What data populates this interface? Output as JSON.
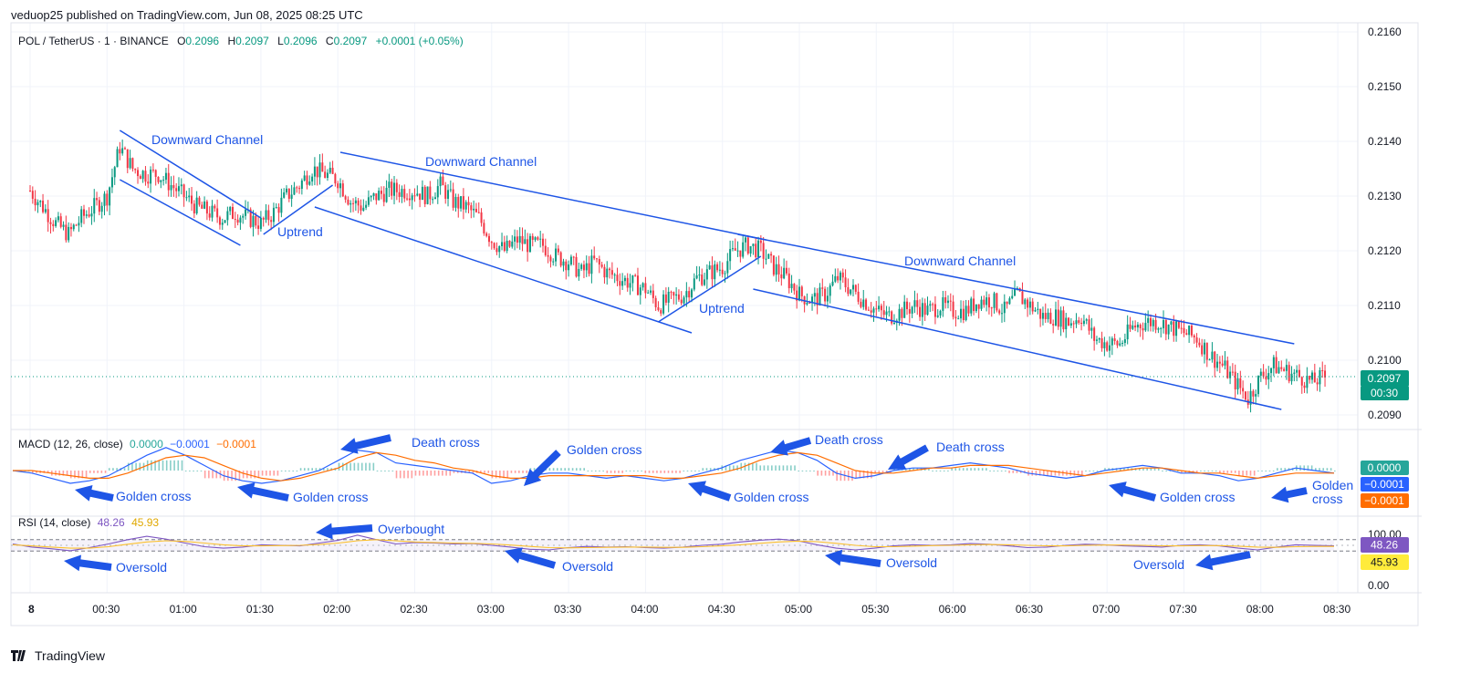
{
  "header": {
    "published": "veduop25 published on TradingView.com, Jun 08, 2025 08:25 UTC"
  },
  "legend": {
    "symbol": "POL / TetherUS · 1 · BINANCE",
    "o_label": "O",
    "o": "0.2096",
    "h_label": "H",
    "h": "0.2097",
    "l_label": "L",
    "l": "0.2096",
    "c_label": "C",
    "c": "0.2097",
    "change": "+0.0001 (+0.05%)"
  },
  "macd_legend": {
    "name": "MACD (12, 26, close)",
    "v1": "0.0000",
    "v2": "−0.0001",
    "v3": "−0.0001"
  },
  "rsi_legend": {
    "name": "RSI (14, close)",
    "v1": "48.26",
    "v2": "45.93"
  },
  "footer": {
    "brand": "TradingView"
  },
  "colors": {
    "up": "#089981",
    "down": "#f23645",
    "annotation": "#1e55e6",
    "macd": "#2962ff",
    "signal": "#ff6d00",
    "rsi": "#7e57c2",
    "rsi_ma": "#fbc02d"
  },
  "chart_data": [
    {
      "type": "candlestick",
      "title": "POL / TetherUS · 1 · BINANCE",
      "x_ticks": [
        "8",
        "00:30",
        "01:00",
        "01:30",
        "02:00",
        "02:30",
        "03:00",
        "03:30",
        "04:00",
        "04:30",
        "05:00",
        "05:30",
        "06:00",
        "06:30",
        "07:00",
        "07:30",
        "08:00",
        "08:30"
      ],
      "y_ticks": [
        "0.2160",
        "0.2150",
        "0.2140",
        "0.2130",
        "0.2120",
        "0.2110",
        "0.2100",
        "0.2090"
      ],
      "ylim": [
        0.2089,
        0.2161
      ],
      "last_price": "0.2097",
      "countdown": "00:30",
      "close_path": [
        {
          "x": "00:00",
          "y": 0.2131
        },
        {
          "x": "00:05",
          "y": 0.2128
        },
        {
          "x": "00:10",
          "y": 0.2125
        },
        {
          "x": "00:15",
          "y": 0.2123
        },
        {
          "x": "00:20",
          "y": 0.2126
        },
        {
          "x": "00:25",
          "y": 0.2128
        },
        {
          "x": "00:30",
          "y": 0.213
        },
        {
          "x": "00:35",
          "y": 0.2139
        },
        {
          "x": "00:40",
          "y": 0.2135
        },
        {
          "x": "00:45",
          "y": 0.2134
        },
        {
          "x": "00:50",
          "y": 0.2134
        },
        {
          "x": "00:55",
          "y": 0.2132
        },
        {
          "x": "01:00",
          "y": 0.213
        },
        {
          "x": "01:05",
          "y": 0.2128
        },
        {
          "x": "01:10",
          "y": 0.2127
        },
        {
          "x": "01:15",
          "y": 0.2126
        },
        {
          "x": "01:20",
          "y": 0.2127
        },
        {
          "x": "01:25",
          "y": 0.2126
        },
        {
          "x": "01:30",
          "y": 0.2125
        },
        {
          "x": "01:35",
          "y": 0.2127
        },
        {
          "x": "01:40",
          "y": 0.213
        },
        {
          "x": "01:45",
          "y": 0.2132
        },
        {
          "x": "01:50",
          "y": 0.2135
        },
        {
          "x": "01:55",
          "y": 0.2134
        },
        {
          "x": "02:00",
          "y": 0.2133
        },
        {
          "x": "02:05",
          "y": 0.2129
        },
        {
          "x": "02:10",
          "y": 0.2128
        },
        {
          "x": "02:15",
          "y": 0.213
        },
        {
          "x": "02:20",
          "y": 0.2131
        },
        {
          "x": "02:25",
          "y": 0.2131
        },
        {
          "x": "02:30",
          "y": 0.2131
        },
        {
          "x": "02:35",
          "y": 0.213
        },
        {
          "x": "02:40",
          "y": 0.2132
        },
        {
          "x": "02:45",
          "y": 0.2129
        },
        {
          "x": "02:50",
          "y": 0.2128
        },
        {
          "x": "02:55",
          "y": 0.2126
        },
        {
          "x": "03:00",
          "y": 0.2122
        },
        {
          "x": "03:05",
          "y": 0.212
        },
        {
          "x": "03:10",
          "y": 0.2122
        },
        {
          "x": "03:15",
          "y": 0.2121
        },
        {
          "x": "03:20",
          "y": 0.2121
        },
        {
          "x": "03:25",
          "y": 0.2119
        },
        {
          "x": "03:30",
          "y": 0.2118
        },
        {
          "x": "03:35",
          "y": 0.2116
        },
        {
          "x": "03:40",
          "y": 0.2118
        },
        {
          "x": "03:45",
          "y": 0.2116
        },
        {
          "x": "03:50",
          "y": 0.2115
        },
        {
          "x": "03:55",
          "y": 0.2114
        },
        {
          "x": "04:00",
          "y": 0.2113
        },
        {
          "x": "04:05",
          "y": 0.211
        },
        {
          "x": "04:10",
          "y": 0.2111
        },
        {
          "x": "04:15",
          "y": 0.2112
        },
        {
          "x": "04:20",
          "y": 0.2115
        },
        {
          "x": "04:25",
          "y": 0.2116
        },
        {
          "x": "04:30",
          "y": 0.2117
        },
        {
          "x": "04:35",
          "y": 0.212
        },
        {
          "x": "04:40",
          "y": 0.2121
        },
        {
          "x": "04:45",
          "y": 0.212
        },
        {
          "x": "04:50",
          "y": 0.2117
        },
        {
          "x": "04:55",
          "y": 0.2115
        },
        {
          "x": "05:00",
          "y": 0.2112
        },
        {
          "x": "05:05",
          "y": 0.2111
        },
        {
          "x": "05:10",
          "y": 0.2112
        },
        {
          "x": "05:15",
          "y": 0.2115
        },
        {
          "x": "05:20",
          "y": 0.2113
        },
        {
          "x": "05:25",
          "y": 0.2111
        },
        {
          "x": "05:30",
          "y": 0.2109
        },
        {
          "x": "05:35",
          "y": 0.2108
        },
        {
          "x": "05:40",
          "y": 0.2109
        },
        {
          "x": "05:45",
          "y": 0.211
        },
        {
          "x": "05:50",
          "y": 0.2109
        },
        {
          "x": "05:55",
          "y": 0.211
        },
        {
          "x": "06:00",
          "y": 0.2109
        },
        {
          "x": "06:05",
          "y": 0.2109
        },
        {
          "x": "06:10",
          "y": 0.2111
        },
        {
          "x": "06:15",
          "y": 0.2111
        },
        {
          "x": "06:20",
          "y": 0.2109
        },
        {
          "x": "06:25",
          "y": 0.2112
        },
        {
          "x": "06:30",
          "y": 0.211
        },
        {
          "x": "06:35",
          "y": 0.2108
        },
        {
          "x": "06:40",
          "y": 0.2108
        },
        {
          "x": "06:45",
          "y": 0.2107
        },
        {
          "x": "06:50",
          "y": 0.2108
        },
        {
          "x": "06:55",
          "y": 0.2104
        },
        {
          "x": "07:00",
          "y": 0.2103
        },
        {
          "x": "07:05",
          "y": 0.2103
        },
        {
          "x": "07:10",
          "y": 0.2106
        },
        {
          "x": "07:15",
          "y": 0.2107
        },
        {
          "x": "07:20",
          "y": 0.2107
        },
        {
          "x": "07:25",
          "y": 0.2106
        },
        {
          "x": "07:30",
          "y": 0.2105
        },
        {
          "x": "07:35",
          "y": 0.2104
        },
        {
          "x": "07:40",
          "y": 0.2101
        },
        {
          "x": "07:45",
          "y": 0.2099
        },
        {
          "x": "07:50",
          "y": 0.2096
        },
        {
          "x": "07:55",
          "y": 0.2093
        },
        {
          "x": "08:00",
          "y": 0.2097
        },
        {
          "x": "08:05",
          "y": 0.2099
        },
        {
          "x": "08:10",
          "y": 0.2098
        },
        {
          "x": "08:15",
          "y": 0.2097
        },
        {
          "x": "08:20",
          "y": 0.2096
        },
        {
          "x": "08:25",
          "y": 0.2097
        }
      ],
      "channel_lines": [
        {
          "label": "Downward Channel",
          "from": {
            "x": "00:35",
            "y": 0.2142
          },
          "to": {
            "x": "01:30",
            "y": 0.2126
          }
        },
        {
          "label": "",
          "from": {
            "x": "00:35",
            "y": 0.2133
          },
          "to": {
            "x": "01:22",
            "y": 0.2121
          }
        },
        {
          "label": "Uptrend",
          "from": {
            "x": "01:31",
            "y": 0.2123
          },
          "to": {
            "x": "01:58",
            "y": 0.2132
          }
        },
        {
          "label": "Downward Channel",
          "from": {
            "x": "02:01",
            "y": 0.2138
          },
          "to": {
            "x": "04:47",
            "y": 0.2122
          }
        },
        {
          "label": "",
          "from": {
            "x": "01:51",
            "y": 0.2128
          },
          "to": {
            "x": "04:18",
            "y": 0.2105
          }
        },
        {
          "label": "Uptrend",
          "from": {
            "x": "04:05",
            "y": 0.2107
          },
          "to": {
            "x": "04:45",
            "y": 0.2119
          }
        },
        {
          "label": "Downward Channel",
          "from": {
            "x": "04:36",
            "y": 0.2123
          },
          "to": {
            "x": "08:13",
            "y": 0.2103
          }
        },
        {
          "label": "",
          "from": {
            "x": "04:42",
            "y": 0.2113
          },
          "to": {
            "x": "08:08",
            "y": 0.2091
          }
        }
      ],
      "annotations": [
        "Downward Channel",
        "Uptrend",
        "Downward Channel",
        "Uptrend",
        "Downward Channel"
      ]
    },
    {
      "type": "line",
      "title": "MACD (12, 26, close)",
      "series": [
        {
          "name": "MACD",
          "color": "#2962ff",
          "values": [
            0.0,
            -0.0001,
            -0.0003,
            -0.0005,
            -0.0004,
            -0.0002,
            0.0002,
            0.0006,
            0.0009,
            0.0006,
            0.0002,
            -0.0002,
            -0.0004,
            -0.0005,
            -0.0004,
            -0.0002,
            0.0,
            0.0004,
            0.0008,
            0.0007,
            0.0003,
            0.0002,
            0.0001,
            0.0,
            -0.0001,
            -0.0005,
            -0.0004,
            -0.0002,
            -0.0001,
            -0.0001,
            -0.0002,
            -0.0003,
            -0.0002,
            -0.0003,
            -0.0004,
            -0.0003,
            -0.0001,
            0.0001,
            0.0004,
            0.0006,
            0.0008,
            0.0007,
            0.0004,
            -0.0001,
            -0.0003,
            -0.0002,
            0.0,
            0.0001,
            0.0001,
            0.0002,
            0.0003,
            0.0002,
            0.0001,
            -0.0001,
            -0.0002,
            -0.0003,
            -0.0002,
            0.0,
            0.0001,
            0.0002,
            0.0001,
            -0.0001,
            -0.0001,
            -0.0002,
            -0.0004,
            -0.0003,
            -0.0001,
            0.0001,
            0.0,
            -0.0001
          ]
        },
        {
          "name": "Signal",
          "color": "#ff6d00",
          "values": [
            0.0,
            0.0,
            -0.0001,
            -0.0002,
            -0.0003,
            -0.0003,
            -0.0001,
            0.0002,
            0.0005,
            0.0006,
            0.0005,
            0.0002,
            -0.0001,
            -0.0003,
            -0.0004,
            -0.0003,
            -0.0001,
            0.0001,
            0.0005,
            0.0007,
            0.0006,
            0.0004,
            0.0003,
            0.0001,
            0.0,
            -0.0002,
            -0.0003,
            -0.0003,
            -0.0002,
            -0.0002,
            -0.0002,
            -0.0002,
            -0.0002,
            -0.0002,
            -0.0003,
            -0.0003,
            -0.0002,
            -0.0001,
            0.0001,
            0.0004,
            0.0006,
            0.0007,
            0.0006,
            0.0003,
            0.0,
            -0.0001,
            -0.0001,
            0.0,
            0.0001,
            0.0001,
            0.0002,
            0.0002,
            0.0002,
            0.0001,
            0.0,
            -0.0001,
            -0.0002,
            -0.0001,
            0.0,
            0.0001,
            0.0001,
            0.0,
            -0.0001,
            -0.0001,
            -0.0002,
            -0.0003,
            -0.0002,
            -0.0001,
            -0.0001,
            -0.0001
          ]
        }
      ],
      "price_tags": [
        "0.0000",
        "−0.0001",
        "−0.0001"
      ],
      "annotations": [
        "Golden cross",
        "Golden cross",
        "Death cross",
        "Golden cross",
        "Golden cross",
        "Death cross",
        "Death cross",
        "Golden cross",
        "Golden cross"
      ]
    },
    {
      "type": "line",
      "title": "RSI (14, close)",
      "y_ticks": [
        "100.00",
        "0.00"
      ],
      "ylim": [
        0,
        100
      ],
      "band": [
        30,
        70
      ],
      "series": [
        {
          "name": "RSI",
          "color": "#7e57c2",
          "values": [
            55,
            44,
            38,
            31,
            42,
            55,
            70,
            82,
            72,
            58,
            45,
            40,
            44,
            52,
            50,
            48,
            58,
            68,
            86,
            70,
            55,
            60,
            58,
            55,
            56,
            50,
            44,
            36,
            34,
            42,
            46,
            44,
            45,
            42,
            40,
            44,
            50,
            54,
            62,
            68,
            72,
            66,
            52,
            40,
            34,
            40,
            48,
            52,
            50,
            52,
            56,
            54,
            48,
            42,
            44,
            50,
            54,
            52,
            48,
            46,
            44,
            50,
            52,
            48,
            40,
            34,
            44,
            52,
            50,
            48
          ]
        },
        {
          "name": "RSI MA",
          "color": "#fbc02d",
          "values": [
            52,
            48,
            44,
            40,
            40,
            45,
            54,
            62,
            66,
            64,
            58,
            52,
            48,
            48,
            49,
            50,
            53,
            58,
            66,
            70,
            66,
            62,
            60,
            58,
            57,
            55,
            51,
            46,
            42,
            41,
            42,
            43,
            44,
            44,
            43,
            43,
            45,
            48,
            52,
            57,
            62,
            65,
            63,
            57,
            50,
            45,
            45,
            47,
            49,
            50,
            52,
            53,
            52,
            50,
            48,
            48,
            50,
            51,
            51,
            50,
            48,
            48,
            49,
            49,
            47,
            44,
            43,
            45,
            46,
            46
          ]
        }
      ],
      "price_tags": [
        "48.26",
        "45.93"
      ],
      "annotations": [
        "Oversold",
        "Overbought",
        "Oversold",
        "Oversold",
        "Oversold"
      ]
    }
  ]
}
